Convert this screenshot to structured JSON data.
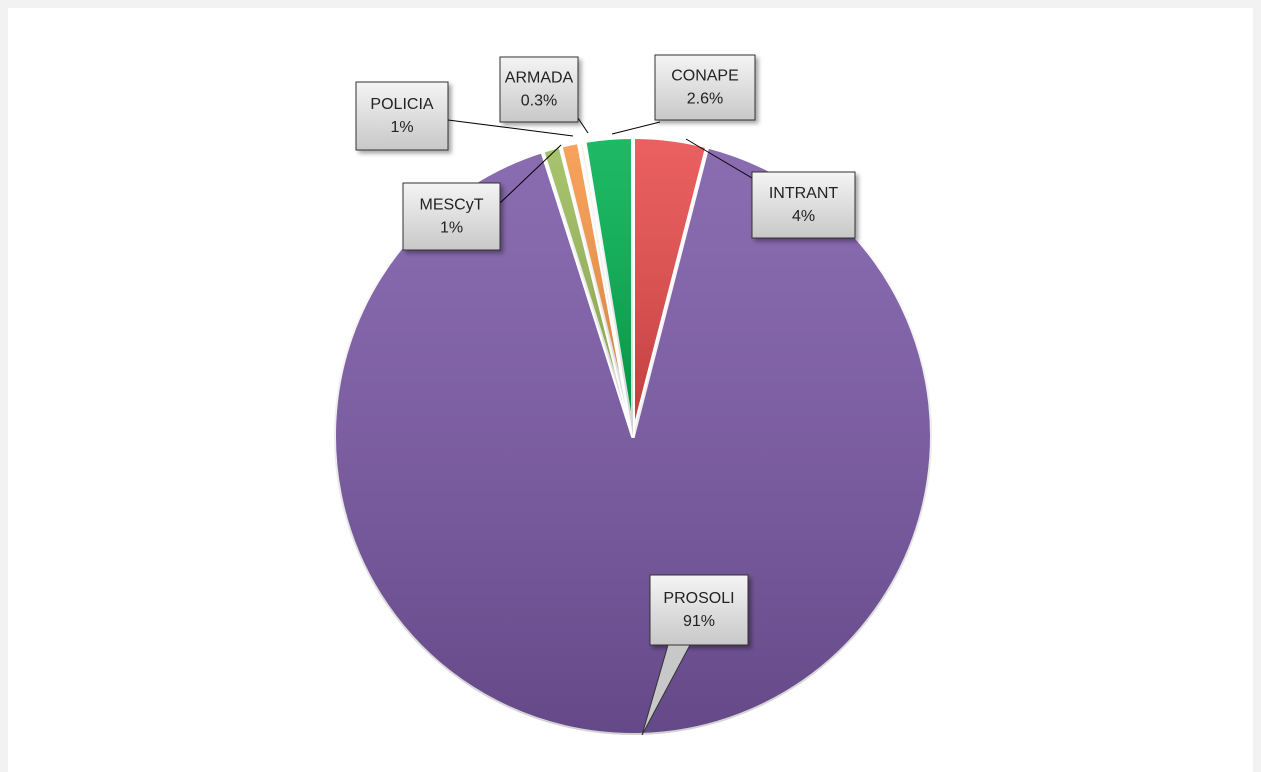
{
  "chart_data": {
    "type": "pie",
    "categories": [
      "INTRANT",
      "PROSOLI",
      "MESCyT",
      "POLICIA",
      "ARMADA",
      "CONAPE"
    ],
    "values": [
      4,
      91,
      1,
      1,
      0.3,
      2.6
    ],
    "value_labels": [
      "4%",
      "91%",
      "1%",
      "1%",
      "0.3%",
      "2.6%"
    ],
    "colors": [
      "#e84a4a",
      "#7a58a6",
      "#9bbb59",
      "#f79646",
      "#f4f1e0",
      "#00b050"
    ]
  }
}
